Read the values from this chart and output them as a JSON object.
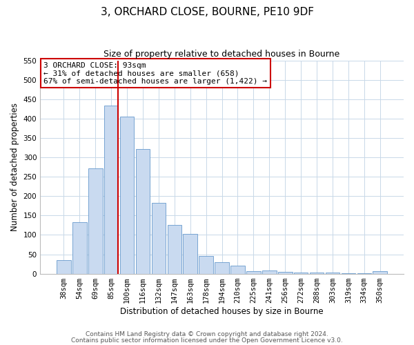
{
  "title": "3, ORCHARD CLOSE, BOURNE, PE10 9DF",
  "subtitle": "Size of property relative to detached houses in Bourne",
  "xlabel": "Distribution of detached houses by size in Bourne",
  "ylabel": "Number of detached properties",
  "bar_labels": [
    "38sqm",
    "54sqm",
    "69sqm",
    "85sqm",
    "100sqm",
    "116sqm",
    "132sqm",
    "147sqm",
    "163sqm",
    "178sqm",
    "194sqm",
    "210sqm",
    "225sqm",
    "241sqm",
    "256sqm",
    "272sqm",
    "288sqm",
    "303sqm",
    "319sqm",
    "334sqm",
    "350sqm"
  ],
  "bar_values": [
    35,
    133,
    272,
    435,
    405,
    322,
    183,
    125,
    103,
    45,
    30,
    20,
    7,
    8,
    5,
    3,
    3,
    2,
    1,
    1,
    7
  ],
  "bar_color": "#c9daf0",
  "bar_edge_color": "#6699cc",
  "vline_color": "#cc0000",
  "ylim": [
    0,
    550
  ],
  "yticks": [
    0,
    50,
    100,
    150,
    200,
    250,
    300,
    350,
    400,
    450,
    500,
    550
  ],
  "annotation_title": "3 ORCHARD CLOSE: 93sqm",
  "annotation_line1": "← 31% of detached houses are smaller (658)",
  "annotation_line2": "67% of semi-detached houses are larger (1,422) →",
  "footer1": "Contains HM Land Registry data © Crown copyright and database right 2024.",
  "footer2": "Contains public sector information licensed under the Open Government Licence v3.0.",
  "bg_color": "#ffffff",
  "grid_color": "#c8d8e8",
  "title_fontsize": 11,
  "subtitle_fontsize": 9,
  "axis_label_fontsize": 8.5,
  "tick_fontsize": 7.5,
  "annotation_fontsize": 8,
  "footer_fontsize": 6.5
}
